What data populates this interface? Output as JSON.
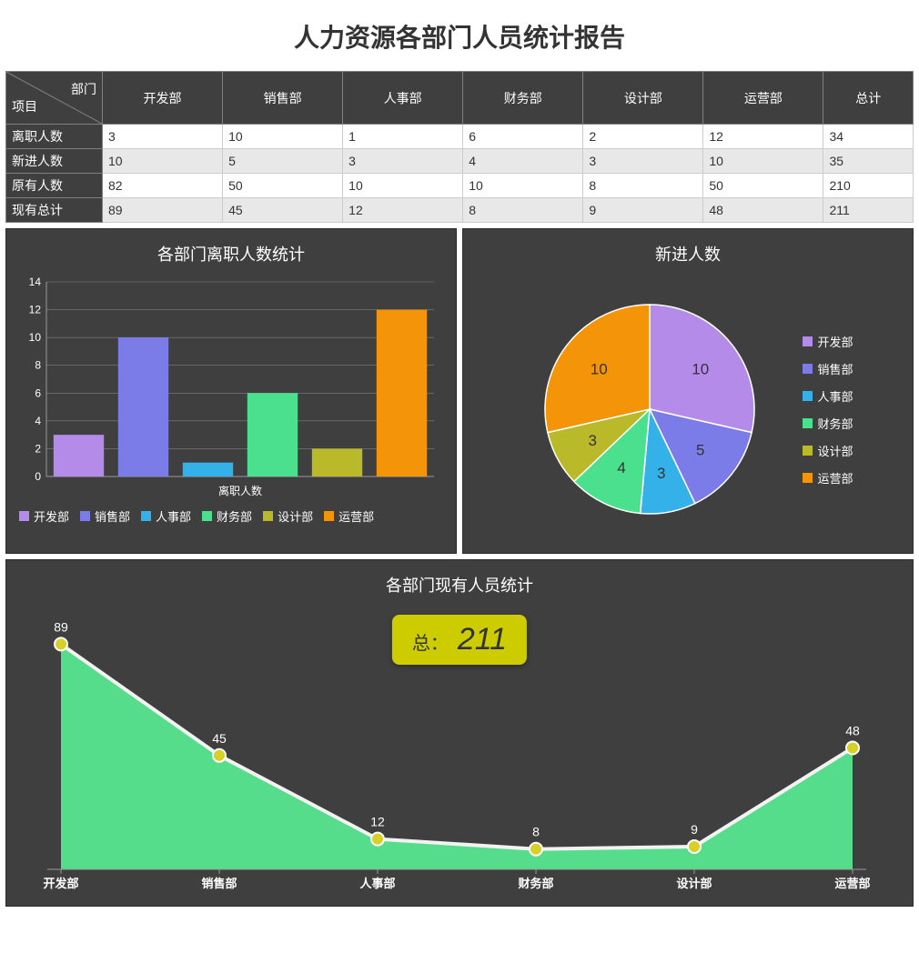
{
  "title": "人力资源各部门人员统计报告",
  "colors": {
    "panel_bg": "#3f3f3f",
    "text_light": "#ffffff",
    "text_dark": "#333333",
    "grid": "#808080",
    "axis": "#9a9a9a"
  },
  "departments": [
    "开发部",
    "销售部",
    "人事部",
    "财务部",
    "设计部",
    "运营部"
  ],
  "series_colors": [
    "#b58bea",
    "#7c7ce8",
    "#33b1e8",
    "#4be08d",
    "#b9b92a",
    "#f39409"
  ],
  "table": {
    "corner_top": "部门",
    "corner_bottom": "项目",
    "columns": [
      "开发部",
      "销售部",
      "人事部",
      "财务部",
      "设计部",
      "运营部",
      "总计"
    ],
    "rows": [
      {
        "label": "离职人数",
        "values": [
          3,
          10,
          1,
          6,
          2,
          12,
          34
        ]
      },
      {
        "label": "新进人数",
        "values": [
          10,
          5,
          3,
          4,
          3,
          10,
          35
        ]
      },
      {
        "label": "原有人数",
        "values": [
          82,
          50,
          10,
          10,
          8,
          50,
          210
        ]
      },
      {
        "label": "现有总计",
        "values": [
          89,
          45,
          12,
          8,
          9,
          48,
          211
        ]
      }
    ]
  },
  "bar_chart": {
    "title": "各部门离职人数统计",
    "x_label": "离职人数",
    "values": [
      3,
      10,
      1,
      6,
      2,
      12
    ],
    "ylim": [
      0,
      14
    ],
    "ytick_step": 2,
    "bar_width_ratio": 0.78
  },
  "pie_chart": {
    "title": "新进人数",
    "values": [
      10,
      5,
      3,
      4,
      3,
      10
    ],
    "start_angle_deg": -90,
    "label_color": "#333333"
  },
  "area_chart": {
    "title": "各部门现有人员统计",
    "values": [
      89,
      45,
      12,
      8,
      9,
      48
    ],
    "fill_color": "#57e68f",
    "line_color": "#f2f2f2",
    "marker_fill": "#d6d028",
    "marker_stroke": "#ffffff",
    "label_color": "#ffffff",
    "total_label": "总：",
    "total_value": 211,
    "badge_bg": "#cccc00"
  }
}
